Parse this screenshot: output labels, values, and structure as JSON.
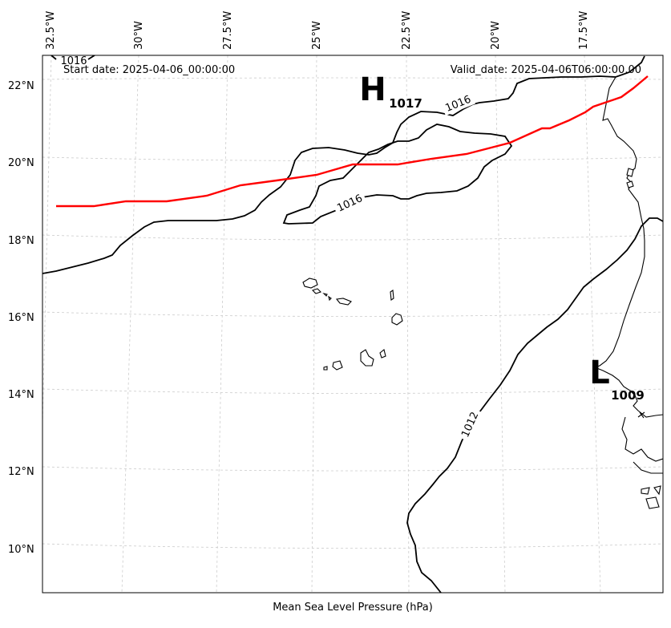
{
  "header": {
    "start_date": "Start date: 2025-04-06_00:00:00",
    "valid_date": "Valid_date: 2025-04-06T06:00:00.00"
  },
  "footer": {
    "caption": "Mean Sea Level Pressure (hPa)"
  },
  "axes": {
    "longitude_ticks": [
      "32.5°W",
      "30°W",
      "27.5°W",
      "25°W",
      "22.5°W",
      "20°W",
      "17.5°W"
    ],
    "latitude_ticks": [
      "22°N",
      "20°N",
      "18°N",
      "16°N",
      "14°N",
      "12°N",
      "10°N"
    ]
  },
  "isobars": {
    "labels": [
      "1016",
      "1016",
      "1016",
      "1012"
    ]
  },
  "pressure_centers": {
    "high": {
      "letter": "H",
      "value": "1017"
    },
    "low": {
      "letter": "L",
      "value": "1009"
    }
  },
  "colors": {
    "track": "#ff0000",
    "isobar": "#000000",
    "grid": "#cccccc"
  }
}
